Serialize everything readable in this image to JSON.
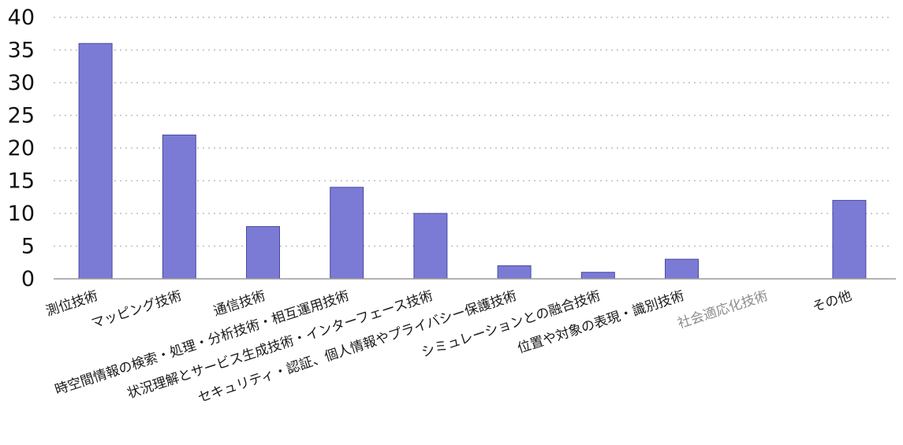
{
  "chart_data": {
    "type": "bar",
    "title": "",
    "xlabel": "",
    "ylabel": "",
    "ylim": [
      0,
      40
    ],
    "yticks": [
      0,
      5,
      10,
      15,
      20,
      25,
      30,
      35,
      40
    ],
    "grid": true,
    "bar_color": "#7b7bd6",
    "categories": [
      "測位技術",
      "マッピング技術",
      "通信技術",
      "時空間情報の検索・処理・分析技術・相互運用技術",
      "状況理解とサービス生成技術・インターフェース技術",
      "セキュリティ・認証、個人情報やプライバシー保護技術",
      "シミュレーションとの融合技術",
      "位置や対象の表現・識別技術",
      "社会適応化技術",
      "その他"
    ],
    "values": [
      36,
      22,
      8,
      14,
      10,
      2,
      1,
      3,
      0,
      12
    ]
  }
}
